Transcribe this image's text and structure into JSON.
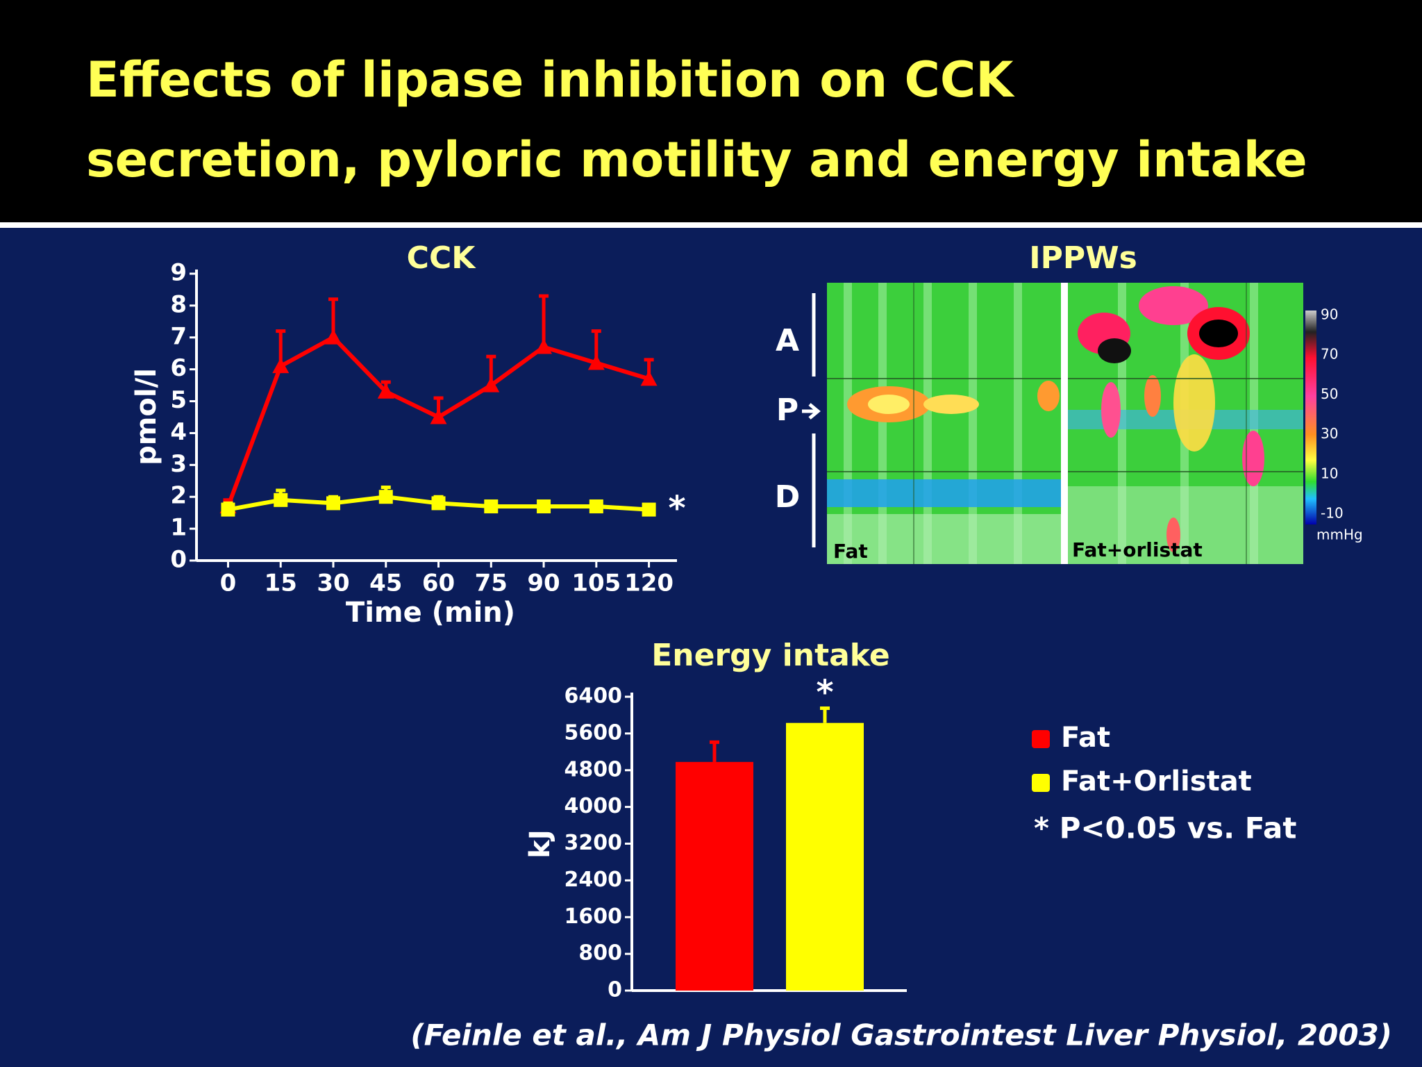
{
  "title": [
    "Effects of lipase inhibition on CCK",
    "secretion, pyloric motility and energy intake"
  ],
  "citation": "(Feinle et al., Am J Physiol Gastrointest Liver Physiol, 2003)",
  "heatmap": {
    "title": "IPPWs",
    "regions": [
      "A",
      "P",
      "D"
    ],
    "panels": [
      "Fat",
      "Fat+orlistat"
    ],
    "colorbar": {
      "ticks": [
        90,
        70,
        50,
        30,
        10,
        -10
      ],
      "unit": "mmHg"
    }
  },
  "chart_data": [
    {
      "type": "line",
      "title": "CCK",
      "x_label": "Time (min)",
      "y_label": "pmol/l",
      "x": [
        0,
        15,
        30,
        45,
        60,
        75,
        90,
        105,
        120
      ],
      "xlim": [
        -9,
        128
      ],
      "xticks": [
        0,
        15,
        30,
        45,
        60,
        75,
        90,
        105,
        120
      ],
      "ylim": [
        0,
        9
      ],
      "yticks": [
        0,
        1,
        2,
        3,
        4,
        5,
        6,
        7,
        8,
        9
      ],
      "series": [
        {
          "color": "#ff0000",
          "marker": "triangle",
          "values": [
            1.7,
            6.1,
            7.0,
            5.3,
            4.5,
            5.5,
            6.7,
            6.2,
            5.7
          ],
          "errors": [
            0.2,
            1.1,
            1.2,
            0.3,
            0.6,
            0.9,
            1.6,
            1.0,
            0.6
          ]
        },
        {
          "color": "#ffff00",
          "marker": "square",
          "values": [
            1.6,
            1.9,
            1.8,
            2.0,
            1.8,
            1.7,
            1.7,
            1.7,
            1.6
          ],
          "errors": [
            0.2,
            0.3,
            0.2,
            0.3,
            0.2,
            0.1,
            0.1,
            0.1,
            0.1
          ]
        }
      ],
      "annotation": "*"
    },
    {
      "type": "bar",
      "title": "Energy intake",
      "y_label": "kJ",
      "ylim": [
        0,
        6400
      ],
      "yticks": [
        0,
        800,
        1600,
        2400,
        3200,
        4000,
        4800,
        5600,
        6400
      ],
      "series": [
        {
          "name": "Fat",
          "color": "#ff0000",
          "values": [
            4980
          ],
          "errors": [
            430
          ]
        },
        {
          "name": "Fat+Orlistat",
          "color": "#ffff00",
          "values": [
            5830
          ],
          "errors": [
            320
          ]
        }
      ],
      "annotation": "*",
      "note": "* P<0.05 vs. Fat",
      "legend": "right"
    }
  ]
}
